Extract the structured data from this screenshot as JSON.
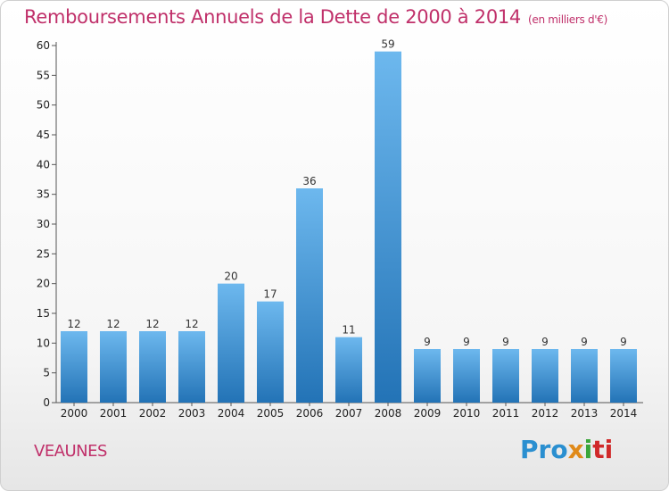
{
  "chart_data": {
    "type": "bar",
    "title": "Remboursements Annuels de la Dette de 2000 à 2014",
    "subtitle": "(en milliers d'€)",
    "categories": [
      "2000",
      "2001",
      "2002",
      "2003",
      "2004",
      "2005",
      "2006",
      "2007",
      "2008",
      "2009",
      "2010",
      "2011",
      "2012",
      "2013",
      "2014"
    ],
    "values": [
      12,
      12,
      12,
      12,
      20,
      17,
      36,
      11,
      59,
      9,
      9,
      9,
      9,
      9,
      9
    ],
    "ylim": [
      0,
      60
    ],
    "yticks": [
      0,
      5,
      10,
      15,
      20,
      25,
      30,
      35,
      40,
      45,
      50,
      55,
      60
    ],
    "grid": false,
    "legend": "none",
    "bar_color": "#3a93d6"
  },
  "commune": "VEAUNES",
  "logo": {
    "p1": "Pro",
    "p2": "x",
    "p3": "i",
    "p4": "ti"
  },
  "colors": {
    "title": "#c0306a",
    "bar_top": "#6db8ee",
    "bar_bottom": "#2373b6"
  }
}
